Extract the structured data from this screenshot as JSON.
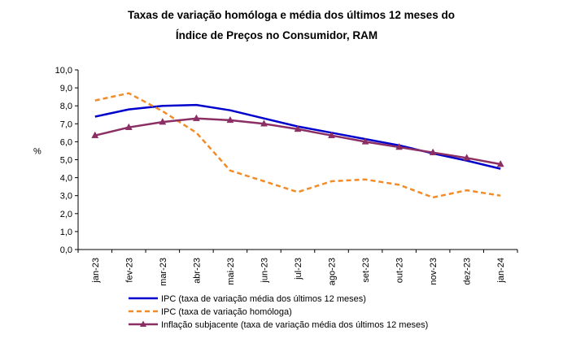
{
  "chart_data": {
    "type": "line",
    "title": "Taxas de variação homóloga e média dos últimos 12 meses do",
    "subtitle": "Índice de Preços no Consumidor, RAM",
    "ylabel": "%",
    "xlabel": "",
    "ylim": [
      0,
      10
    ],
    "ytick_step": 1,
    "ytick_labels": [
      "0,0",
      "1,0",
      "2,0",
      "3,0",
      "4,0",
      "5,0",
      "6,0",
      "7,0",
      "8,0",
      "9,0",
      "10,0"
    ],
    "grid": false,
    "legend_position": "bottom-left",
    "categories": [
      "jan-23",
      "fev-23",
      "mar-23",
      "abr-23",
      "mai-23",
      "jun-23",
      "jul-23",
      "ago-23",
      "set-23",
      "out-23",
      "nov-23",
      "dez-23",
      "jan-24"
    ],
    "series": [
      {
        "name": "IPC (taxa de variação média dos últimos 12 meses)",
        "color": "#0000CC",
        "style": "solid",
        "marker": "none",
        "values": [
          7.4,
          7.8,
          8.0,
          8.05,
          7.75,
          7.3,
          6.85,
          6.5,
          6.15,
          5.8,
          5.35,
          4.95,
          4.5
        ]
      },
      {
        "name": "IPC (taxa de variação homóloga)",
        "color": "#F28C28",
        "style": "dashed",
        "marker": "none",
        "values": [
          8.3,
          8.7,
          7.7,
          6.5,
          4.4,
          3.8,
          3.2,
          3.8,
          3.9,
          3.6,
          2.9,
          3.3,
          3.0
        ]
      },
      {
        "name": "Inflação subjacente (taxa de variação média dos últimos 12 meses)",
        "color": "#8B2E63",
        "style": "solid",
        "marker": "triangle",
        "values": [
          6.35,
          6.8,
          7.1,
          7.3,
          7.2,
          7.0,
          6.7,
          6.35,
          6.0,
          5.7,
          5.4,
          5.1,
          4.75
        ]
      }
    ]
  }
}
